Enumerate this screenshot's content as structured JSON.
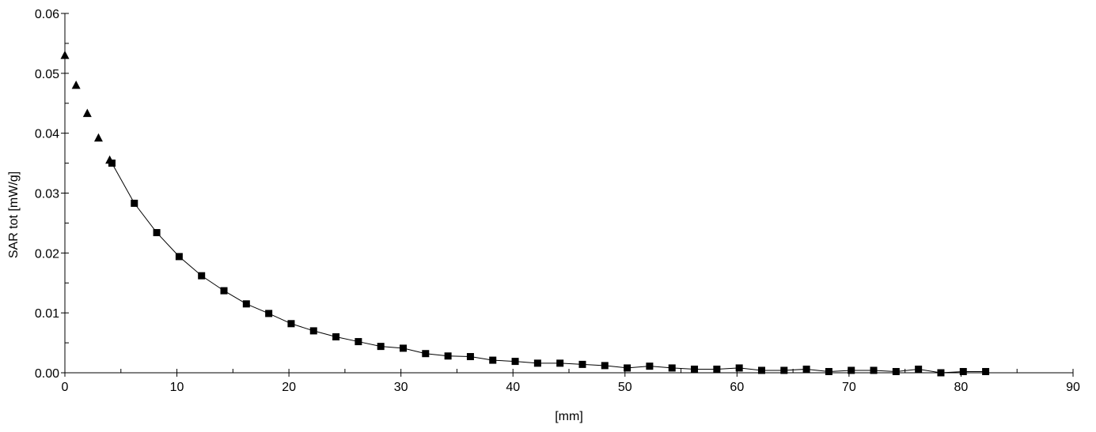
{
  "chart_data": {
    "type": "scatter",
    "title": "",
    "xlabel": "[mm]",
    "ylabel": "SAR tot [mW/g]",
    "xlim": [
      0,
      90
    ],
    "ylim": [
      0,
      0.06
    ],
    "x_ticks": [
      "0",
      "10",
      "20",
      "30",
      "40",
      "50",
      "60",
      "70",
      "80",
      "90"
    ],
    "y_ticks": [
      "0.00",
      "0.01",
      "0.02",
      "0.03",
      "0.04",
      "0.05",
      "0.06"
    ],
    "grid": false,
    "legend": "none",
    "series": [
      {
        "marker": "triangle",
        "connected": false,
        "color": "#000000",
        "x": [
          0,
          1,
          2,
          3,
          4
        ],
        "y": [
          0.053,
          0.048,
          0.0433,
          0.0392,
          0.0355
        ]
      },
      {
        "marker": "square",
        "connected": true,
        "color": "#000000",
        "x": [
          4.2,
          6.2,
          8.2,
          10.2,
          12.2,
          14.2,
          16.2,
          18.2,
          20.2,
          22.2,
          24.2,
          26.2,
          28.2,
          30.2,
          32.2,
          34.2,
          36.2,
          38.2,
          40.2,
          42.2,
          44.2,
          46.2,
          48.2,
          50.2,
          52.2,
          54.2,
          56.2,
          58.2,
          60.2,
          62.2,
          64.2,
          66.2,
          68.2,
          70.2,
          72.2,
          74.2,
          76.2,
          78.2,
          80.2,
          82.2
        ],
        "y": [
          0.035,
          0.0283,
          0.0234,
          0.0194,
          0.0162,
          0.0137,
          0.0115,
          0.0099,
          0.0082,
          0.007,
          0.006,
          0.0052,
          0.0044,
          0.0041,
          0.0032,
          0.0028,
          0.0027,
          0.0021,
          0.0019,
          0.0016,
          0.0016,
          0.0014,
          0.0012,
          0.0008,
          0.0011,
          0.0008,
          0.0006,
          0.0006,
          0.0008,
          0.0004,
          0.0004,
          0.0006,
          0.0002,
          0.0004,
          0.0004,
          0.0002,
          0.0006,
          0.0,
          0.0002,
          0.0002
        ]
      }
    ]
  }
}
